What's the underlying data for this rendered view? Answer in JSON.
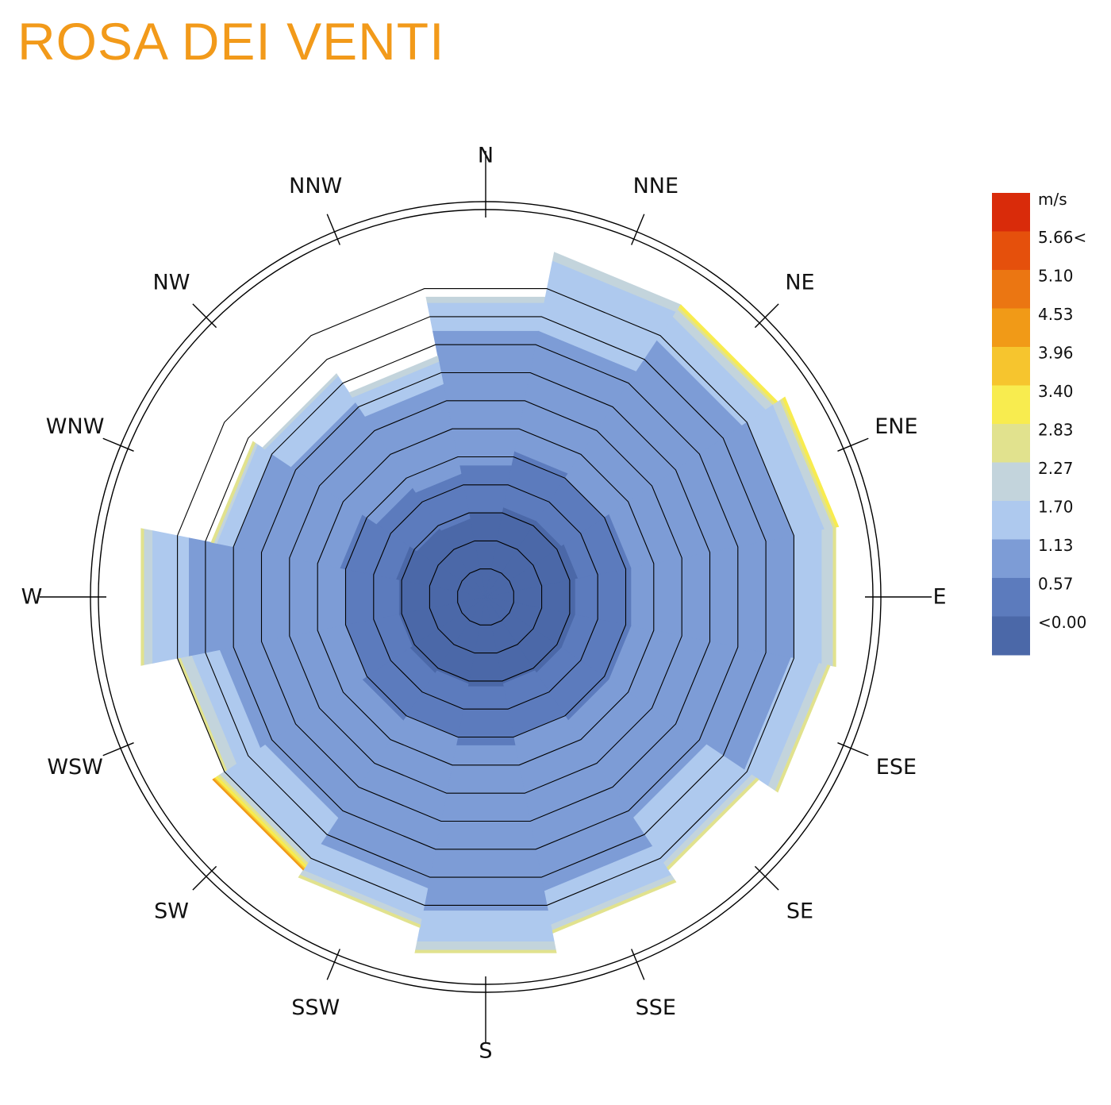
{
  "title": "ROSA DEI VENTI",
  "chart_data": {
    "type": "wind-rose",
    "directions": [
      "N",
      "NNE",
      "NE",
      "ENE",
      "E",
      "ESE",
      "SE",
      "SSE",
      "S",
      "SSW",
      "SW",
      "WSW",
      "W",
      "WNW",
      "NW",
      "NNW"
    ],
    "frequency_levels": 11,
    "speed_bins": [
      "<0.00",
      "0.57",
      "1.13",
      "1.70",
      "2.27",
      "2.83",
      "3.40",
      "3.96",
      "4.53",
      "5.10",
      "5.66<"
    ],
    "colors": [
      "#4b68a8",
      "#5c7bbd",
      "#7d9cd6",
      "#aec9ee",
      "#c3d4dc",
      "#e1e28e",
      "#f8ec4f",
      "#f6c52e",
      "#f19a17",
      "#eb7612",
      "#e5500c",
      "#d92b0a"
    ],
    "series": [
      {
        "name": "N",
        "bands": [
          [
            0,
            2.0
          ],
          [
            2.0,
            3.7
          ],
          [
            3.7,
            8.5
          ],
          [
            8.5,
            9.5
          ],
          [
            9.5,
            9.7
          ]
        ]
      },
      {
        "name": "NNE",
        "bands": [
          [
            0,
            2.2
          ],
          [
            2.2,
            4.2
          ],
          [
            4.2,
            8.5
          ],
          [
            8.5,
            11.0
          ],
          [
            11.0,
            11.3
          ]
        ]
      },
      {
        "name": "NE",
        "bands": [
          [
            0,
            2.2
          ],
          [
            2.2,
            4.0
          ],
          [
            4.0,
            9.8
          ],
          [
            9.8,
            10.8
          ],
          [
            10.8,
            11.1
          ],
          [
            11.1,
            11.2
          ],
          [
            11.2,
            11.3
          ]
        ]
      },
      {
        "name": "ENE",
        "bands": [
          [
            0,
            2.3
          ],
          [
            2.3,
            4.2
          ],
          [
            4.2,
            10.0
          ],
          [
            10.0,
            11.1
          ],
          [
            11.1,
            11.4
          ],
          [
            11.4,
            11.5
          ],
          [
            11.5,
            11.6
          ]
        ]
      },
      {
        "name": "E",
        "bands": [
          [
            0,
            2.2
          ],
          [
            2.2,
            4.2
          ],
          [
            4.2,
            10.0
          ],
          [
            10.0,
            11.0
          ],
          [
            11.0,
            11.4
          ],
          [
            11.4,
            11.5
          ]
        ]
      },
      {
        "name": "ESE",
        "bands": [
          [
            0,
            2.2
          ],
          [
            2.2,
            4.2
          ],
          [
            4.2,
            9.9
          ],
          [
            9.9,
            10.9
          ],
          [
            10.9,
            11.2
          ],
          [
            11.2,
            11.3
          ]
        ]
      },
      {
        "name": "SE",
        "bands": [
          [
            0,
            2.2
          ],
          [
            2.2,
            4.2
          ],
          [
            4.2,
            8.3
          ],
          [
            8.3,
            10.2
          ],
          [
            10.2,
            10.4
          ],
          [
            10.4,
            10.5
          ]
        ]
      },
      {
        "name": "SSE",
        "bands": [
          [
            0,
            2.1
          ],
          [
            2.1,
            4.0
          ],
          [
            4.0,
            9.5
          ],
          [
            9.5,
            10.7
          ],
          [
            10.7,
            10.9
          ],
          [
            10.9,
            11.0
          ]
        ]
      },
      {
        "name": "S",
        "bands": [
          [
            0,
            2.2
          ],
          [
            2.2,
            4.3
          ],
          [
            4.3,
            10.2
          ],
          [
            10.2,
            11.3
          ],
          [
            11.3,
            11.6
          ],
          [
            11.6,
            11.7
          ]
        ]
      },
      {
        "name": "SSW",
        "bands": [
          [
            0,
            2.1
          ],
          [
            2.1,
            4.0
          ],
          [
            4.0,
            9.4
          ],
          [
            9.4,
            10.5
          ],
          [
            10.5,
            10.7
          ],
          [
            10.7,
            10.8
          ]
        ]
      },
      {
        "name": "SW",
        "bands": [
          [
            0,
            2.2
          ],
          [
            2.2,
            4.2
          ],
          [
            4.2,
            8.3
          ],
          [
            8.3,
            10.0
          ],
          [
            10.0,
            10.2
          ],
          [
            10.2,
            10.3
          ],
          [
            10.3,
            10.4
          ],
          [
            10.4,
            10.45
          ],
          [
            10.45,
            10.5
          ]
        ]
      },
      {
        "name": "WSW",
        "bands": [
          [
            0,
            2.1
          ],
          [
            2.1,
            4.0
          ],
          [
            4.0,
            8.5
          ],
          [
            8.5,
            9.5
          ],
          [
            9.5,
            9.9
          ],
          [
            9.9,
            10.0
          ]
        ]
      },
      {
        "name": "W",
        "bands": [
          [
            0,
            2.1
          ],
          [
            2.1,
            4.0
          ],
          [
            4.0,
            9.6
          ],
          [
            9.6,
            10.9
          ],
          [
            10.9,
            11.2
          ],
          [
            11.2,
            11.3
          ]
        ]
      },
      {
        "name": "WNW",
        "bands": [
          [
            0,
            2.2
          ],
          [
            2.2,
            4.2
          ],
          [
            4.2,
            8.0
          ],
          [
            8.0,
            8.6
          ],
          [
            8.6,
            8.7
          ],
          [
            8.7,
            8.8
          ]
        ]
      },
      {
        "name": "NW",
        "bands": [
          [
            0,
            1.9
          ],
          [
            1.9,
            3.6
          ],
          [
            3.6,
            7.2
          ],
          [
            7.2,
            8.3
          ],
          [
            8.3,
            8.4
          ]
        ]
      },
      {
        "name": "NNW",
        "bands": [
          [
            0,
            1.8
          ],
          [
            1.8,
            3.4
          ],
          [
            3.4,
            6.6
          ],
          [
            6.6,
            7.4
          ],
          [
            7.4,
            7.6
          ]
        ]
      }
    ],
    "legend": {
      "unit": "m/s",
      "labels": [
        "5.66<",
        "5.10",
        "4.53",
        "3.96",
        "3.40",
        "2.83",
        "2.27",
        "1.70",
        "1.13",
        "0.57",
        "<0.00"
      ],
      "position": "right"
    },
    "grid": true
  }
}
